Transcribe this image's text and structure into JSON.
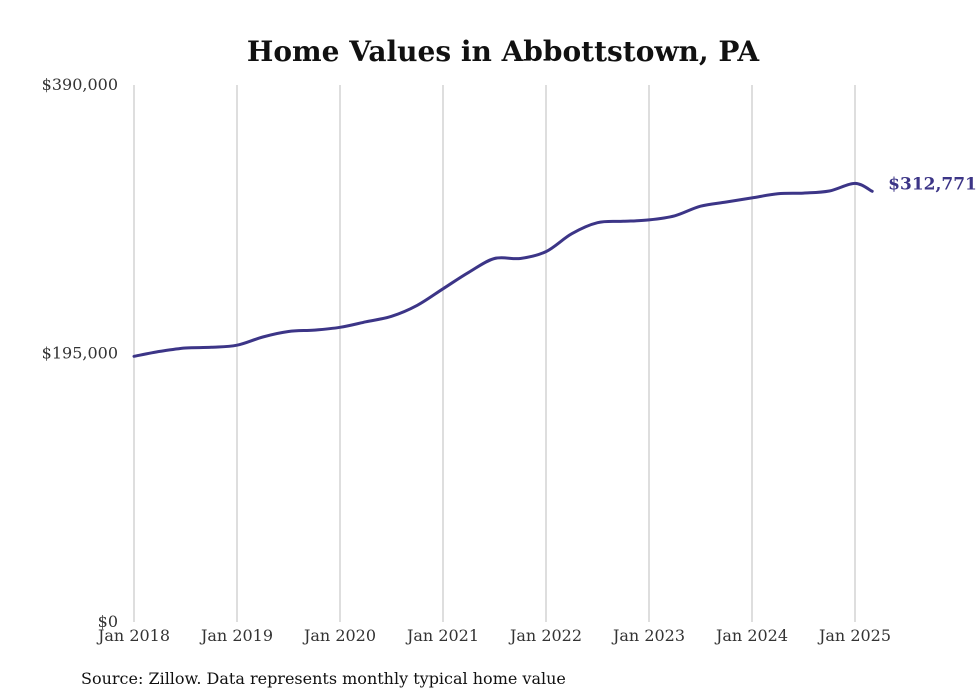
{
  "chart_data": {
    "type": "line",
    "title": "Home Values in Abbottstown, PA",
    "xlabel": "",
    "ylabel": "",
    "source": "Source: Zillow. Data represents monthly typical home value",
    "ylim": [
      0,
      390000
    ],
    "yticks": [
      0,
      195000,
      390000
    ],
    "ytick_labels": [
      "$0",
      "$195,000",
      "$390,000"
    ],
    "xticks": [
      "2018-01",
      "2019-01",
      "2020-01",
      "2021-01",
      "2022-01",
      "2023-01",
      "2024-01",
      "2025-01"
    ],
    "xtick_labels": [
      "Jan 2018",
      "Jan 2019",
      "Jan 2020",
      "Jan 2021",
      "Jan 2022",
      "Jan 2023",
      "Jan 2024",
      "Jan 2025"
    ],
    "xlim": [
      "2018-01",
      "2025-03"
    ],
    "grid": "vertical",
    "legend": "none",
    "line_color": "#3c3587",
    "end_label": "$312,771",
    "series": [
      {
        "points": [
          [
            "2018-01",
            193000
          ],
          [
            "2018-04",
            196500
          ],
          [
            "2018-07",
            199000
          ],
          [
            "2018-10",
            199500
          ],
          [
            "2019-01",
            201000
          ],
          [
            "2019-04",
            207000
          ],
          [
            "2019-07",
            211000
          ],
          [
            "2019-10",
            212000
          ],
          [
            "2020-01",
            214000
          ],
          [
            "2020-04",
            218000
          ],
          [
            "2020-07",
            222000
          ],
          [
            "2020-10",
            230000
          ],
          [
            "2021-01",
            242000
          ],
          [
            "2021-04",
            254000
          ],
          [
            "2021-07",
            264000
          ],
          [
            "2021-10",
            264000
          ],
          [
            "2022-01",
            269000
          ],
          [
            "2022-04",
            282000
          ],
          [
            "2022-07",
            290000
          ],
          [
            "2022-10",
            291000
          ],
          [
            "2023-01",
            292000
          ],
          [
            "2023-04",
            295000
          ],
          [
            "2023-07",
            302000
          ],
          [
            "2023-10",
            305000
          ],
          [
            "2024-01",
            308000
          ],
          [
            "2024-04",
            311000
          ],
          [
            "2024-07",
            311500
          ],
          [
            "2024-10",
            313000
          ],
          [
            "2025-01",
            318500
          ],
          [
            "2025-03",
            312771
          ]
        ]
      }
    ]
  }
}
